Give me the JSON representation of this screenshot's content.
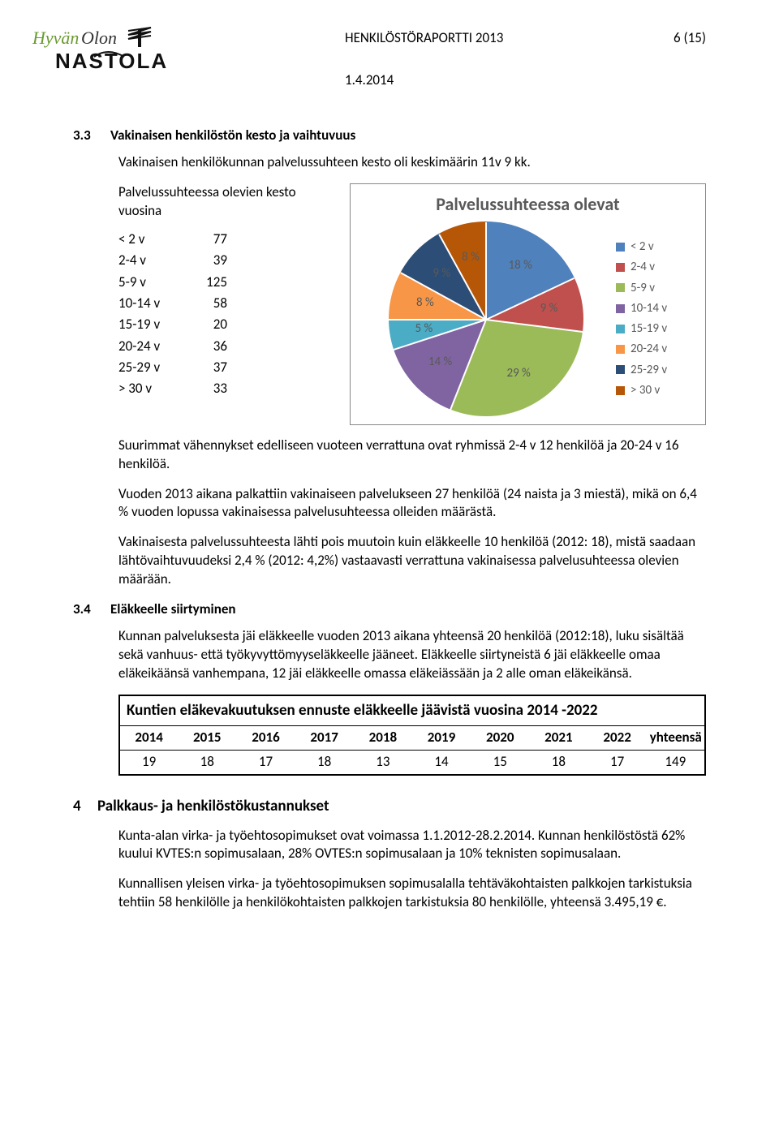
{
  "header": {
    "report_title": "HENKILÖSTÖRAPORTTI 2013",
    "page_num": "6 (15)",
    "date": "1.4.2014"
  },
  "section_3_3": {
    "num": "3.3",
    "title": "Vakinaisen henkilöstön kesto ja vaihtuvuus",
    "para1": "Vakinaisen henkilökunnan palvelussuhteen kesto oli keskimäärin 11v 9 kk.",
    "para2": "Palvelussuhteessa olevien kesto vuosina",
    "durations": {
      "rows": [
        {
          "label": "< 2 v",
          "value": "77"
        },
        {
          "label": "2-4 v",
          "value": "39"
        },
        {
          "label": "5-9 v",
          "value": "125"
        },
        {
          "label": "10-14 v",
          "value": "58"
        },
        {
          "label": "15-19 v",
          "value": "20"
        },
        {
          "label": "20-24 v",
          "value": "36"
        },
        {
          "label": "25-29 v",
          "value": "37"
        },
        {
          "label": "> 30 v",
          "value": "33"
        }
      ]
    },
    "chart": {
      "title": "Palvelussuhteessa olevat",
      "type": "pie",
      "slices": [
        {
          "label": "< 2 v",
          "pct": 18,
          "color": "#4f81bd",
          "text": "18 %"
        },
        {
          "label": "2-4 v",
          "pct": 9,
          "color": "#c0504d",
          "text": "9 %"
        },
        {
          "label": "5-9 v",
          "pct": 29,
          "color": "#9bbb59",
          "text": "29 %"
        },
        {
          "label": "10-14 v",
          "pct": 14,
          "color": "#8064a2",
          "text": "14 %"
        },
        {
          "label": "15-19 v",
          "pct": 5,
          "color": "#4bacc6",
          "text": "5 %"
        },
        {
          "label": "20-24 v",
          "pct": 8,
          "color": "#f79646",
          "text": "8 %"
        },
        {
          "label": "25-29 v",
          "pct": 9,
          "color": "#2c4d75",
          "text": "9 %"
        },
        {
          "label": "> 30 v",
          "pct": 8,
          "color": "#b65708",
          "text": "8 %"
        }
      ],
      "label_fontsize": 15,
      "label_color": "#595959",
      "title_color": "#595959",
      "title_fontsize": 22,
      "border_color": "#888888",
      "background": "#ffffff",
      "slice_border": "#ffffff"
    },
    "para3": "Suurimmat vähennykset edelliseen vuoteen verrattuna ovat ryhmissä 2-4 v 12 henkilöä ja 20-24 v 16 henkilöä.",
    "para4": "Vuoden 2013 aikana palkattiin vakinaiseen palvelukseen 27 henkilöä (24 naista ja 3 miestä), mikä on 6,4 % vuoden lopussa vakinaisessa palvelusuhteessa olleiden määrästä.",
    "para5": "Vakinaisesta palvelussuhteesta lähti pois muutoin kuin eläkkeelle 10 henkilöä (2012: 18), mistä saadaan lähtövaihtuvuudeksi 2,4 % (2012: 4,2%) vastaavasti verrattuna vakinaisessa palvelusuhteessa olevien määrään."
  },
  "section_3_4": {
    "num": "3.4",
    "title": "Eläkkeelle siirtyminen",
    "para1": "Kunnan palveluksesta jäi eläkkeelle vuoden 2013 aikana yhteensä 20 henkilöä (2012:18), luku sisältää sekä vanhuus- että työkyvyttömyyseläkkeelle jääneet. Eläkkeelle siirtyneistä 6 jäi eläkkeelle omaa eläkeikäänsä vanhempana, 12 jäi eläkkeelle omassa eläkeiässään ja 2 alle oman eläkeikänsä."
  },
  "forecast": {
    "title": "Kuntien eläkevakuutuksen ennuste eläkkeelle jäävistä vuosina 2014 -2022",
    "columns": [
      "2014",
      "2015",
      "2016",
      "2017",
      "2018",
      "2019",
      "2020",
      "2021",
      "2022",
      "yhteensä"
    ],
    "values": [
      "19",
      "18",
      "17",
      "18",
      "13",
      "14",
      "15",
      "18",
      "17",
      "149"
    ]
  },
  "section_4": {
    "num": "4",
    "title": "Palkkaus- ja henkilöstökustannukset",
    "para1": "Kunta-alan virka- ja työehtosopimukset ovat voimassa 1.1.2012-28.2.2014. Kunnan henkilöstöstä 62% kuului KVTES:n sopimusalaan, 28% OVTES:n sopimusalaan ja 10% teknisten sopimusalaan.",
    "para2": "Kunnallisen yleisen virka- ja työehtosopimuksen sopimusalalla tehtäväkohtaisten palkkojen tarkistuksia tehtiin 58 henkilölle ja henkilökohtaisten palkkojen tarkistuksia 80 henkilölle, yhteensä 3.495,19 €."
  }
}
